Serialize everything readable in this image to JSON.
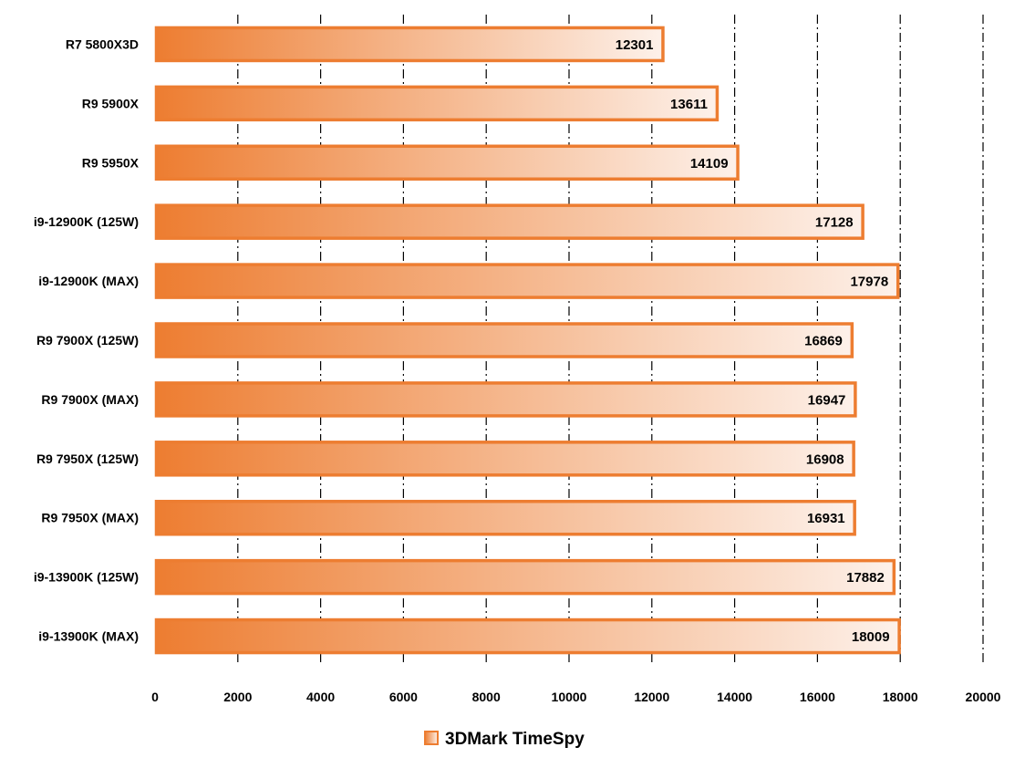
{
  "chart_data": {
    "type": "bar",
    "orientation": "horizontal",
    "categories": [
      "R7 5800X3D",
      "R9 5900X",
      "R9 5950X",
      "i9-12900K (125W)",
      "i9-12900K (MAX)",
      "R9 7900X (125W)",
      "R9 7900X (MAX)",
      "R9 7950X (125W)",
      "R9 7950X (MAX)",
      "i9-13900K (125W)",
      "i9-13900K (MAX)"
    ],
    "series": [
      {
        "name": "3DMark TimeSpy",
        "values": [
          12301,
          13611,
          14109,
          17128,
          17978,
          16869,
          16947,
          16908,
          16931,
          17882,
          18009
        ]
      }
    ],
    "xlim": [
      0,
      20000
    ],
    "xticks": [
      "0",
      "2000",
      "4000",
      "6000",
      "8000",
      "10000",
      "12000",
      "14000",
      "16000",
      "18000",
      "20000"
    ],
    "grid": "vertical dash-dot",
    "legend_position": "bottom",
    "colors": {
      "bar_fill_start": "#ed7d31",
      "bar_fill_end": "#fdf1ea",
      "bar_border": "#ed7d31",
      "grid": "#000000"
    }
  }
}
